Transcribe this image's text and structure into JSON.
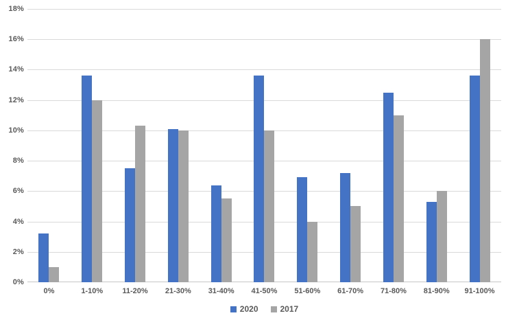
{
  "chart_data": {
    "type": "bar",
    "title": "",
    "categories": [
      "0%",
      "1-10%",
      "11-20%",
      "21-30%",
      "31-40%",
      "41-50%",
      "51-60%",
      "61-70%",
      "71-80%",
      "81-90%",
      "91-100%"
    ],
    "series": [
      {
        "name": "2020",
        "color": "#4472C4",
        "values": [
          3.2,
          13.6,
          7.5,
          10.1,
          6.4,
          13.6,
          6.9,
          7.2,
          12.5,
          5.3,
          13.6
        ]
      },
      {
        "name": "2017",
        "color": "#A5A5A5",
        "values": [
          1.0,
          12.0,
          10.3,
          10.0,
          5.5,
          10.0,
          4.0,
          5.0,
          11.0,
          6.0,
          16.0
        ]
      }
    ],
    "ylim": [
      0,
      18
    ],
    "y_tick_values": [
      0,
      2,
      4,
      6,
      8,
      10,
      12,
      14,
      16,
      18
    ],
    "y_tick_labels": [
      "0%",
      "2%",
      "4%",
      "6%",
      "8%",
      "10%",
      "12%",
      "14%",
      "16%",
      "18%"
    ],
    "xlabel": "",
    "ylabel": "",
    "grid": "horizontal",
    "legend_position": "bottom-center"
  },
  "colors": {
    "background": "#FFFFFF",
    "gridline": "#D9D9D9",
    "axis_line": "#C6C6C6",
    "tick_text": "#595959"
  }
}
